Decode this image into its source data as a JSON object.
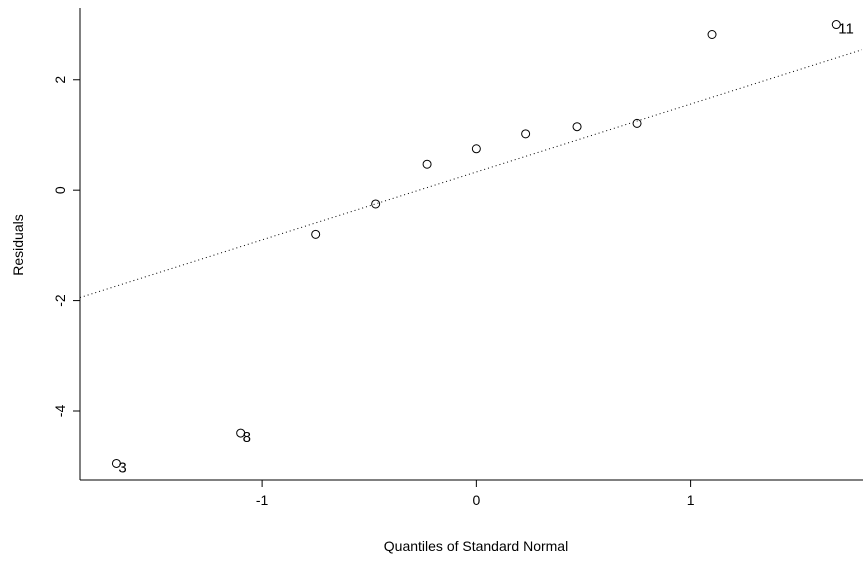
{
  "chart_data": {
    "type": "scatter",
    "title": "",
    "xlabel": "Quantiles of Standard Normal",
    "ylabel": "Residuals",
    "xlim": [
      -1.85,
      1.8
    ],
    "ylim": [
      -5.25,
      3.3
    ],
    "xticks": [
      -1,
      0,
      1
    ],
    "yticks": [
      -4,
      -2,
      0,
      2
    ],
    "xtick_labels": [
      "-1",
      "0",
      "1"
    ],
    "ytick_labels": [
      "-4",
      "-2",
      "0",
      "2"
    ],
    "points": [
      {
        "x": -1.68,
        "y": -4.95,
        "label": "3"
      },
      {
        "x": -1.1,
        "y": -4.4,
        "label": "8"
      },
      {
        "x": -0.75,
        "y": -0.8,
        "label": ""
      },
      {
        "x": -0.47,
        "y": -0.25,
        "label": ""
      },
      {
        "x": -0.23,
        "y": 0.47,
        "label": ""
      },
      {
        "x": 0.0,
        "y": 0.75,
        "label": ""
      },
      {
        "x": 0.23,
        "y": 1.02,
        "label": ""
      },
      {
        "x": 0.47,
        "y": 1.15,
        "label": ""
      },
      {
        "x": 0.75,
        "y": 1.21,
        "label": ""
      },
      {
        "x": 1.1,
        "y": 2.82,
        "label": ""
      },
      {
        "x": 1.68,
        "y": 3.0,
        "label": "11"
      }
    ],
    "reference_line": {
      "style": "dotted",
      "intercept": 0.33,
      "slope": 1.23
    },
    "grid": false,
    "legend": "none"
  }
}
